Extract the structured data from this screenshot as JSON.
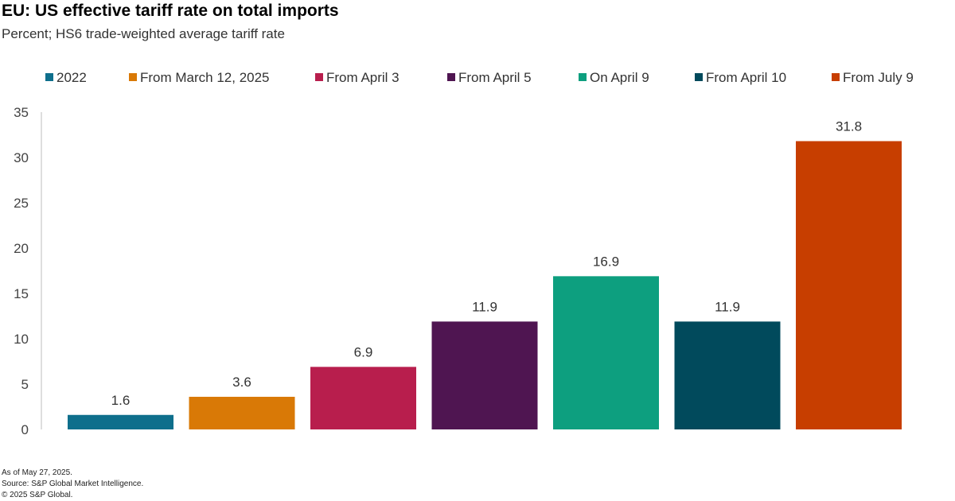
{
  "title": "EU: US effective tariff rate on total imports",
  "subtitle": "Percent; HS6 trade-weighted average tariff rate",
  "footer": {
    "as_of": "As of May 27, 2025.",
    "source": "Source: S&P Global Market Intelligence.",
    "copyright": "© 2025 S&P Global."
  },
  "chart_data": {
    "type": "bar",
    "title": "EU: US effective tariff rate on total imports",
    "subtitle": "Percent; HS6 trade-weighted average tariff rate",
    "xlabel": "",
    "ylabel": "",
    "ylim": [
      0,
      35
    ],
    "yticks": [
      0,
      5,
      10,
      15,
      20,
      25,
      30,
      35
    ],
    "grid": false,
    "legend_position": "top",
    "categories": [
      "2022",
      "From March 12, 2025",
      "From April 3",
      "From April 5",
      "On April 9",
      "From April 10",
      "From July 9"
    ],
    "values": [
      1.6,
      3.6,
      6.9,
      11.9,
      16.9,
      11.9,
      31.8
    ],
    "data_labels": [
      "1.6",
      "3.6",
      "6.9",
      "11.9",
      "16.9",
      "11.9",
      "31.8"
    ],
    "colors": [
      "#0e6f8c",
      "#d97906",
      "#b81e4d",
      "#4f1551",
      "#0d9f7f",
      "#014a5c",
      "#c73e00"
    ]
  }
}
